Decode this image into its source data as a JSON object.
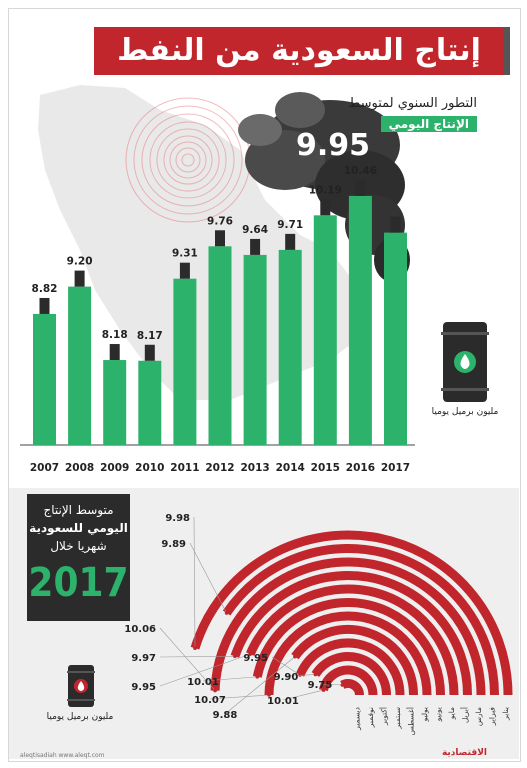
{
  "title": "إنتاج السعودية من النفط",
  "annual": {
    "subtitle1": "التطور السنوي لمتوسط",
    "subtitle2": "الإنتاج اليومي",
    "smoke_value": "9.95",
    "unit": "مليون برميل يوميا"
  },
  "monthly": {
    "box_line1": "متوسط الإنتاج",
    "box_line2": "اليومي للسعودية",
    "box_line3": "شهريا خلال",
    "year": "2017",
    "unit": "مليون برميل يوميا"
  },
  "footer": {
    "handle": "aleqtisadiah  www.aleqt.com",
    "logo": "الاقتصادية"
  },
  "colors": {
    "red": "#c0262c",
    "green": "#2db26b",
    "dark": "#2b2b2b"
  },
  "chart_data": [
    {
      "type": "bar",
      "categories": [
        "2007",
        "2008",
        "2009",
        "2010",
        "2011",
        "2012",
        "2013",
        "2014",
        "2015",
        "2016",
        "2017"
      ],
      "values": [
        8.82,
        9.2,
        8.18,
        8.17,
        9.31,
        9.76,
        9.64,
        9.71,
        10.19,
        10.46,
        9.95
      ],
      "value_labels": [
        "8.82",
        "9.20",
        "8.18",
        "8.17",
        "9.31",
        "9.76",
        "9.64",
        "9.71",
        "10.19",
        "10.46",
        ""
      ],
      "ylabel": "مليون برميل يوميا"
    },
    {
      "type": "bar",
      "categories": [
        "يناير",
        "فبراير",
        "مارس",
        "أبريل",
        "مايو",
        "يونيو",
        "يوليو",
        "أغسطس",
        "سبتمبر",
        "أكتوبر",
        "نوفمبر",
        "ديسمبر"
      ],
      "values": [
        9.98,
        9.89,
        10.06,
        9.97,
        9.95,
        10.01,
        10.07,
        9.88,
        9.95,
        9.9,
        10.01,
        9.75
      ],
      "value_labels": [
        "9.98",
        "9.89",
        "10.06",
        "9.97",
        "9.95",
        "10.01",
        "10.07",
        "9.88",
        "9.95",
        "9.90",
        "10.01",
        "9.75"
      ],
      "ylabel": "مليون برميل يوميا"
    }
  ]
}
